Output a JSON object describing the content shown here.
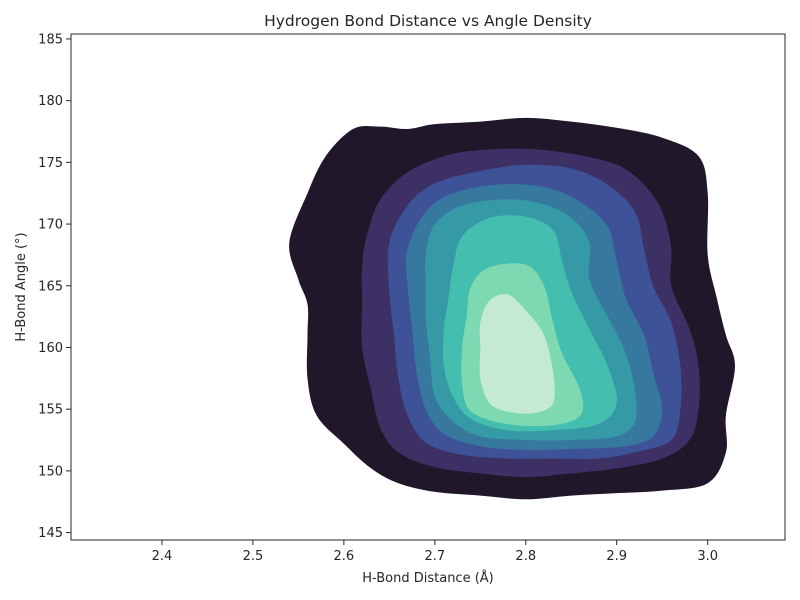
{
  "chart_data": {
    "type": "density-contour",
    "title": "Hydrogen Bond Distance vs Angle Density",
    "xlabel": "H-Bond Distance (Å)",
    "ylabel": "H-Bond Angle (°)",
    "xlim": [
      2.3,
      3.085
    ],
    "ylim": [
      144.4,
      185.4
    ],
    "xticks": [
      2.4,
      2.5,
      2.6,
      2.7,
      2.8,
      2.9,
      3.0
    ],
    "yticks": [
      145,
      150,
      155,
      160,
      165,
      170,
      175,
      180,
      185
    ],
    "grid": false,
    "legend": "none",
    "levels": [
      {
        "fill": "#21172a",
        "points": [
          [
            2.54,
            168.5
          ],
          [
            2.56,
            172.5
          ],
          [
            2.58,
            175.5
          ],
          [
            2.61,
            177.7
          ],
          [
            2.64,
            177.9
          ],
          [
            2.67,
            177.7
          ],
          [
            2.7,
            178.1
          ],
          [
            2.75,
            178.3
          ],
          [
            2.8,
            178.6
          ],
          [
            2.85,
            178.3
          ],
          [
            2.9,
            177.8
          ],
          [
            2.95,
            177.0
          ],
          [
            2.99,
            175.5
          ],
          [
            3.0,
            172.5
          ],
          [
            3.0,
            167.5
          ],
          [
            3.01,
            164.0
          ],
          [
            3.02,
            161.0
          ],
          [
            3.03,
            158.5
          ],
          [
            3.02,
            154.5
          ],
          [
            3.02,
            151.5
          ],
          [
            3.0,
            149.0
          ],
          [
            2.95,
            148.4
          ],
          [
            2.9,
            148.2
          ],
          [
            2.85,
            148.0
          ],
          [
            2.8,
            147.7
          ],
          [
            2.75,
            148.0
          ],
          [
            2.7,
            148.3
          ],
          [
            2.66,
            149.0
          ],
          [
            2.63,
            150.2
          ],
          [
            2.6,
            152.2
          ],
          [
            2.57,
            154.5
          ],
          [
            2.56,
            157.5
          ],
          [
            2.56,
            161.0
          ],
          [
            2.56,
            163.5
          ],
          [
            2.55,
            165.5
          ]
        ]
      },
      {
        "fill": "#3d3065",
        "points": [
          [
            2.625,
            169.0
          ],
          [
            2.64,
            172.0
          ],
          [
            2.67,
            174.2
          ],
          [
            2.71,
            175.5
          ],
          [
            2.75,
            176.0
          ],
          [
            2.8,
            176.1
          ],
          [
            2.85,
            175.7
          ],
          [
            2.9,
            174.8
          ],
          [
            2.93,
            173.2
          ],
          [
            2.95,
            171.0
          ],
          [
            2.96,
            168.0
          ],
          [
            2.96,
            165.0
          ],
          [
            2.98,
            161.5
          ],
          [
            2.99,
            158.5
          ],
          [
            2.99,
            155.0
          ],
          [
            2.98,
            152.5
          ],
          [
            2.95,
            151.0
          ],
          [
            2.9,
            150.2
          ],
          [
            2.85,
            149.8
          ],
          [
            2.8,
            149.5
          ],
          [
            2.75,
            149.8
          ],
          [
            2.7,
            150.3
          ],
          [
            2.66,
            151.5
          ],
          [
            2.64,
            153.5
          ],
          [
            2.63,
            156.5
          ],
          [
            2.62,
            160.0
          ],
          [
            2.62,
            163.5
          ],
          [
            2.62,
            166.5
          ]
        ]
      },
      {
        "fill": "#3e5297",
        "points": [
          [
            2.65,
            168.5
          ],
          [
            2.67,
            171.5
          ],
          [
            2.7,
            173.3
          ],
          [
            2.75,
            174.3
          ],
          [
            2.8,
            174.8
          ],
          [
            2.85,
            174.5
          ],
          [
            2.89,
            173.2
          ],
          [
            2.92,
            171.0
          ],
          [
            2.93,
            168.0
          ],
          [
            2.94,
            165.0
          ],
          [
            2.96,
            162.0
          ],
          [
            2.97,
            158.5
          ],
          [
            2.97,
            155.0
          ],
          [
            2.96,
            152.5
          ],
          [
            2.92,
            151.5
          ],
          [
            2.88,
            151.0
          ],
          [
            2.83,
            151.0
          ],
          [
            2.78,
            151.0
          ],
          [
            2.73,
            151.3
          ],
          [
            2.69,
            152.3
          ],
          [
            2.67,
            154.5
          ],
          [
            2.66,
            157.5
          ],
          [
            2.655,
            161.0
          ],
          [
            2.65,
            164.5
          ]
        ]
      },
      {
        "fill": "#37789f",
        "points": [
          [
            2.67,
            168.0
          ],
          [
            2.69,
            171.0
          ],
          [
            2.72,
            172.5
          ],
          [
            2.77,
            173.2
          ],
          [
            2.82,
            173.0
          ],
          [
            2.86,
            171.8
          ],
          [
            2.89,
            169.8
          ],
          [
            2.9,
            167.0
          ],
          [
            2.91,
            164.0
          ],
          [
            2.93,
            161.0
          ],
          [
            2.94,
            158.0
          ],
          [
            2.95,
            155.0
          ],
          [
            2.94,
            152.8
          ],
          [
            2.91,
            152.0
          ],
          [
            2.86,
            151.8
          ],
          [
            2.8,
            151.7
          ],
          [
            2.75,
            152.0
          ],
          [
            2.71,
            153.0
          ],
          [
            2.69,
            155.0
          ],
          [
            2.68,
            158.0
          ],
          [
            2.675,
            161.5
          ],
          [
            2.67,
            165.0
          ]
        ]
      },
      {
        "fill": "#359aa6",
        "points": [
          [
            2.69,
            167.5
          ],
          [
            2.7,
            170.0
          ],
          [
            2.73,
            171.5
          ],
          [
            2.78,
            172.0
          ],
          [
            2.82,
            171.6
          ],
          [
            2.85,
            170.5
          ],
          [
            2.87,
            168.5
          ],
          [
            2.87,
            165.5
          ],
          [
            2.89,
            162.5
          ],
          [
            2.91,
            159.5
          ],
          [
            2.92,
            156.5
          ],
          [
            2.92,
            154.0
          ],
          [
            2.9,
            152.8
          ],
          [
            2.85,
            152.5
          ],
          [
            2.8,
            152.5
          ],
          [
            2.75,
            152.8
          ],
          [
            2.72,
            154.0
          ],
          [
            2.7,
            156.0
          ],
          [
            2.695,
            159.0
          ],
          [
            2.69,
            162.5
          ],
          [
            2.69,
            165.0
          ]
        ]
      },
      {
        "fill": "#44beae",
        "points": [
          [
            2.72,
            166.5
          ],
          [
            2.73,
            169.0
          ],
          [
            2.76,
            170.5
          ],
          [
            2.8,
            170.6
          ],
          [
            2.83,
            169.5
          ],
          [
            2.84,
            167.0
          ],
          [
            2.85,
            164.5
          ],
          [
            2.87,
            161.5
          ],
          [
            2.89,
            158.5
          ],
          [
            2.9,
            155.5
          ],
          [
            2.88,
            153.8
          ],
          [
            2.83,
            153.3
          ],
          [
            2.78,
            153.3
          ],
          [
            2.74,
            154.2
          ],
          [
            2.72,
            156.0
          ],
          [
            2.71,
            158.5
          ],
          [
            2.71,
            161.5
          ],
          [
            2.715,
            164.0
          ]
        ]
      },
      {
        "fill": "#7dd9b2",
        "points": [
          [
            2.74,
            165.0
          ],
          [
            2.76,
            166.5
          ],
          [
            2.8,
            166.7
          ],
          [
            2.82,
            165.0
          ],
          [
            2.83,
            162.0
          ],
          [
            2.84,
            159.5
          ],
          [
            2.86,
            156.5
          ],
          [
            2.86,
            154.5
          ],
          [
            2.83,
            153.7
          ],
          [
            2.78,
            153.8
          ],
          [
            2.74,
            154.8
          ],
          [
            2.73,
            157.0
          ],
          [
            2.73,
            160.0
          ],
          [
            2.735,
            162.5
          ]
        ]
      },
      {
        "fill": "#c4ebd2",
        "points": [
          [
            2.75,
            162.0
          ],
          [
            2.76,
            163.8
          ],
          [
            2.78,
            164.3
          ],
          [
            2.8,
            163.0
          ],
          [
            2.82,
            161.0
          ],
          [
            2.83,
            158.0
          ],
          [
            2.83,
            155.5
          ],
          [
            2.81,
            154.7
          ],
          [
            2.78,
            154.8
          ],
          [
            2.76,
            155.5
          ],
          [
            2.75,
            157.5
          ],
          [
            2.75,
            160.0
          ]
        ]
      }
    ]
  }
}
